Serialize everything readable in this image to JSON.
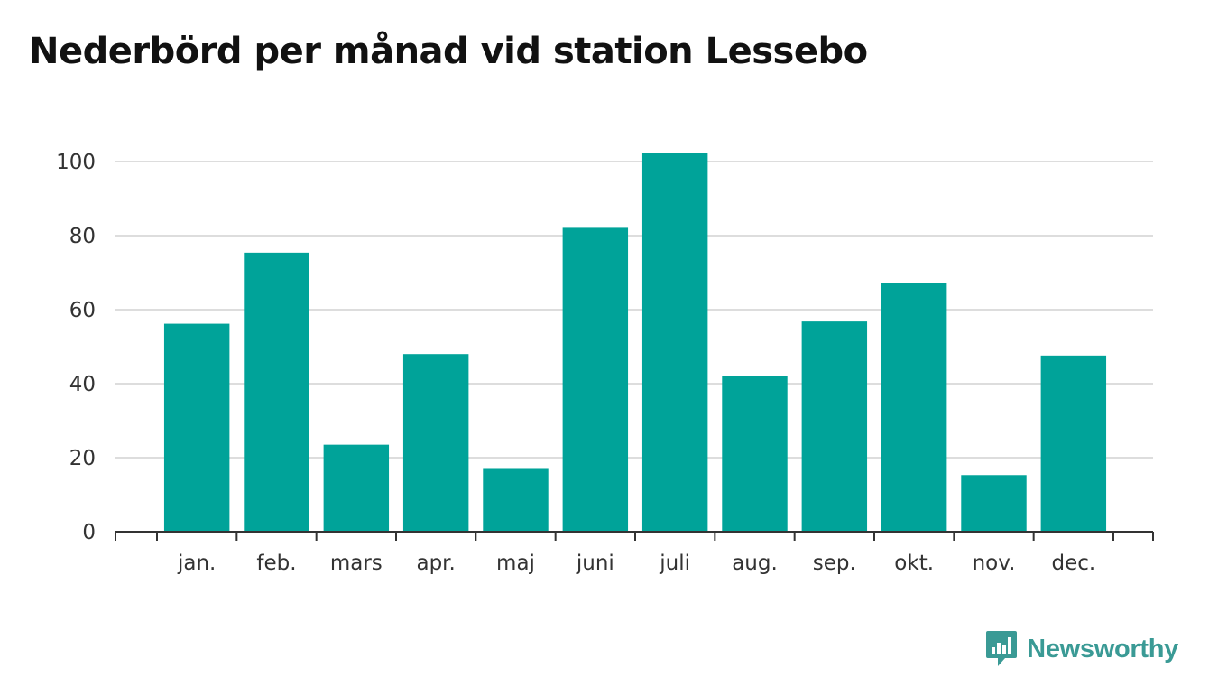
{
  "title": "Nederbörd per månad vid station Lessebo",
  "brand": {
    "name": "Newsworthy",
    "icon": "newsworthy-logo-icon",
    "color": "#3a9a95"
  },
  "chart_data": {
    "type": "bar",
    "title": "Nederbörd per månad vid station Lessebo",
    "xlabel": "",
    "ylabel": "",
    "categories": [
      "jan.",
      "feb.",
      "mars",
      "apr.",
      "maj",
      "juni",
      "juli",
      "aug.",
      "sep.",
      "okt.",
      "nov.",
      "dec."
    ],
    "values": [
      56.2,
      75.4,
      23.5,
      48.0,
      17.2,
      82.1,
      102.4,
      42.1,
      56.8,
      67.2,
      15.3,
      47.6
    ],
    "ylim": [
      0,
      100
    ],
    "yticks": [
      0,
      20,
      40,
      60,
      80,
      100
    ],
    "grid": true,
    "legend": "none",
    "bar_color": "#00a399",
    "grid_color": "#dddddd",
    "axis_color": "#333333"
  }
}
